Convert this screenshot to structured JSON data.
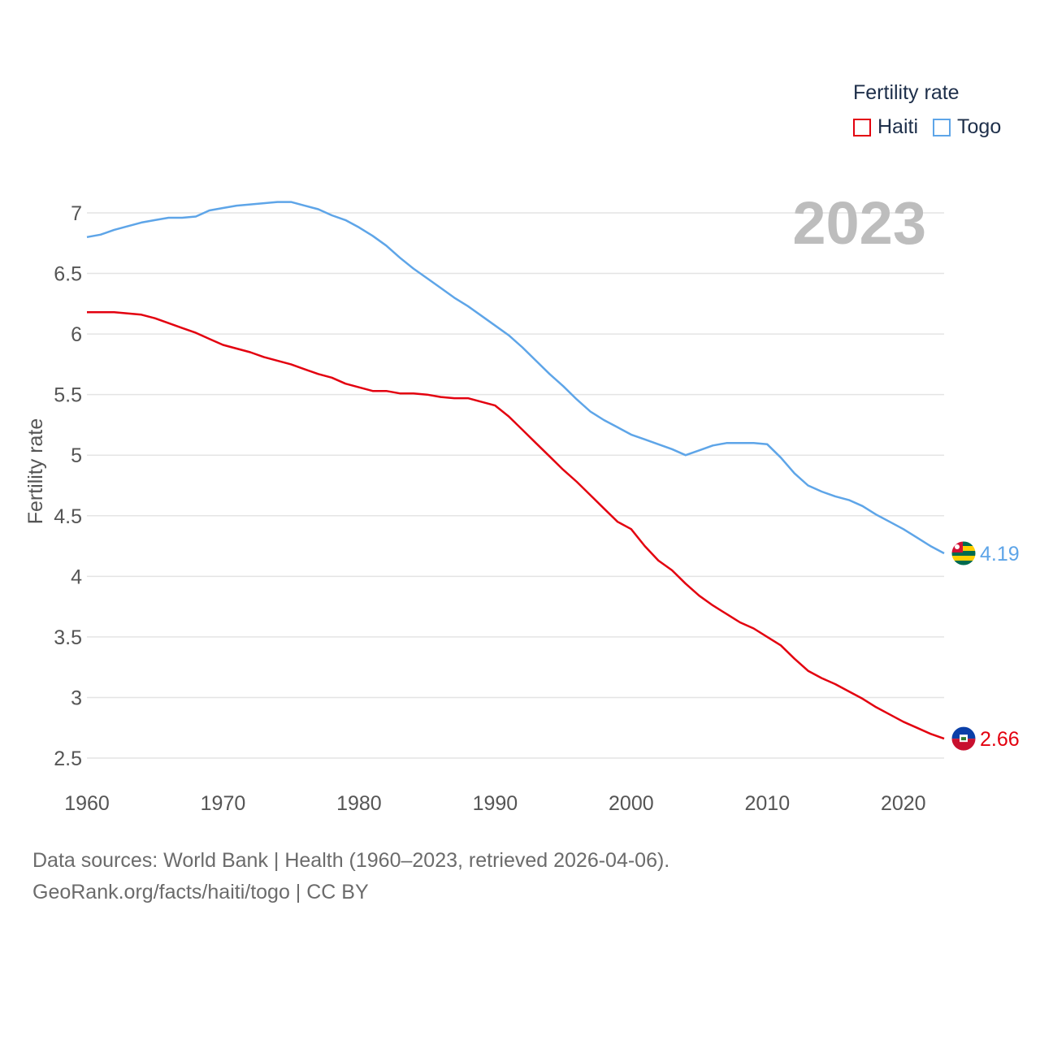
{
  "chart_data": {
    "type": "line",
    "title": "Fertility rate",
    "xlabel": "",
    "ylabel": "Fertility rate",
    "year": "2023",
    "xlim": [
      1960,
      2023
    ],
    "ylim": [
      2.5,
      7.1
    ],
    "x_ticks": [
      1960,
      1970,
      1980,
      1990,
      2000,
      2010,
      2020
    ],
    "y_ticks": [
      "2.5",
      "3",
      "3.5",
      "4",
      "4.5",
      "5",
      "5.5",
      "6",
      "6.5",
      "7"
    ],
    "x": [
      1960,
      1961,
      1962,
      1963,
      1964,
      1965,
      1966,
      1967,
      1968,
      1969,
      1970,
      1971,
      1972,
      1973,
      1974,
      1975,
      1976,
      1977,
      1978,
      1979,
      1980,
      1981,
      1982,
      1983,
      1984,
      1985,
      1986,
      1987,
      1988,
      1989,
      1990,
      1991,
      1992,
      1993,
      1994,
      1995,
      1996,
      1997,
      1998,
      1999,
      2000,
      2001,
      2002,
      2003,
      2004,
      2005,
      2006,
      2007,
      2008,
      2009,
      2010,
      2011,
      2012,
      2013,
      2014,
      2015,
      2016,
      2017,
      2018,
      2019,
      2020,
      2021,
      2022,
      2023
    ],
    "series": [
      {
        "name": "Haiti",
        "color": "#e3000f",
        "end_label": "2.66",
        "values": [
          6.18,
          6.18,
          6.18,
          6.17,
          6.16,
          6.13,
          6.09,
          6.05,
          6.01,
          5.96,
          5.91,
          5.88,
          5.85,
          5.81,
          5.78,
          5.75,
          5.71,
          5.67,
          5.64,
          5.59,
          5.56,
          5.53,
          5.53,
          5.51,
          5.51,
          5.5,
          5.48,
          5.47,
          5.47,
          5.44,
          5.41,
          5.32,
          5.21,
          5.1,
          4.99,
          4.88,
          4.78,
          4.67,
          4.56,
          4.45,
          4.39,
          4.25,
          4.13,
          4.05,
          3.94,
          3.84,
          3.76,
          3.69,
          3.62,
          3.57,
          3.5,
          3.43,
          3.32,
          3.22,
          3.16,
          3.11,
          3.05,
          2.99,
          2.92,
          2.86,
          2.8,
          2.75,
          2.7,
          2.66
        ]
      },
      {
        "name": "Togo",
        "color": "#5ea5e8",
        "end_label": "4.19",
        "values": [
          6.8,
          6.82,
          6.86,
          6.89,
          6.92,
          6.94,
          6.96,
          6.96,
          6.97,
          7.02,
          7.04,
          7.06,
          7.07,
          7.08,
          7.09,
          7.09,
          7.06,
          7.03,
          6.98,
          6.94,
          6.88,
          6.81,
          6.73,
          6.63,
          6.54,
          6.46,
          6.38,
          6.3,
          6.23,
          6.15,
          6.07,
          5.99,
          5.89,
          5.78,
          5.67,
          5.57,
          5.46,
          5.36,
          5.29,
          5.23,
          5.17,
          5.13,
          5.09,
          5.05,
          5.0,
          5.04,
          5.08,
          5.1,
          5.1,
          5.1,
          5.09,
          4.98,
          4.85,
          4.75,
          4.7,
          4.66,
          4.63,
          4.58,
          4.51,
          4.45,
          4.39,
          4.32,
          4.25,
          4.19
        ]
      }
    ]
  },
  "legend": {
    "title": "Fertility rate",
    "items": [
      {
        "label": "Haiti",
        "color": "#e3000f"
      },
      {
        "label": "Togo",
        "color": "#5ea5e8"
      }
    ]
  },
  "footer": {
    "line1": "Data sources: World Bank | Health (1960–2023, retrieved 2026-04-06).",
    "line2": "GeoRank.org/facts/haiti/togo | CC BY"
  },
  "flags": {
    "haiti": "haiti-flag-icon",
    "togo": "togo-flag-icon"
  }
}
